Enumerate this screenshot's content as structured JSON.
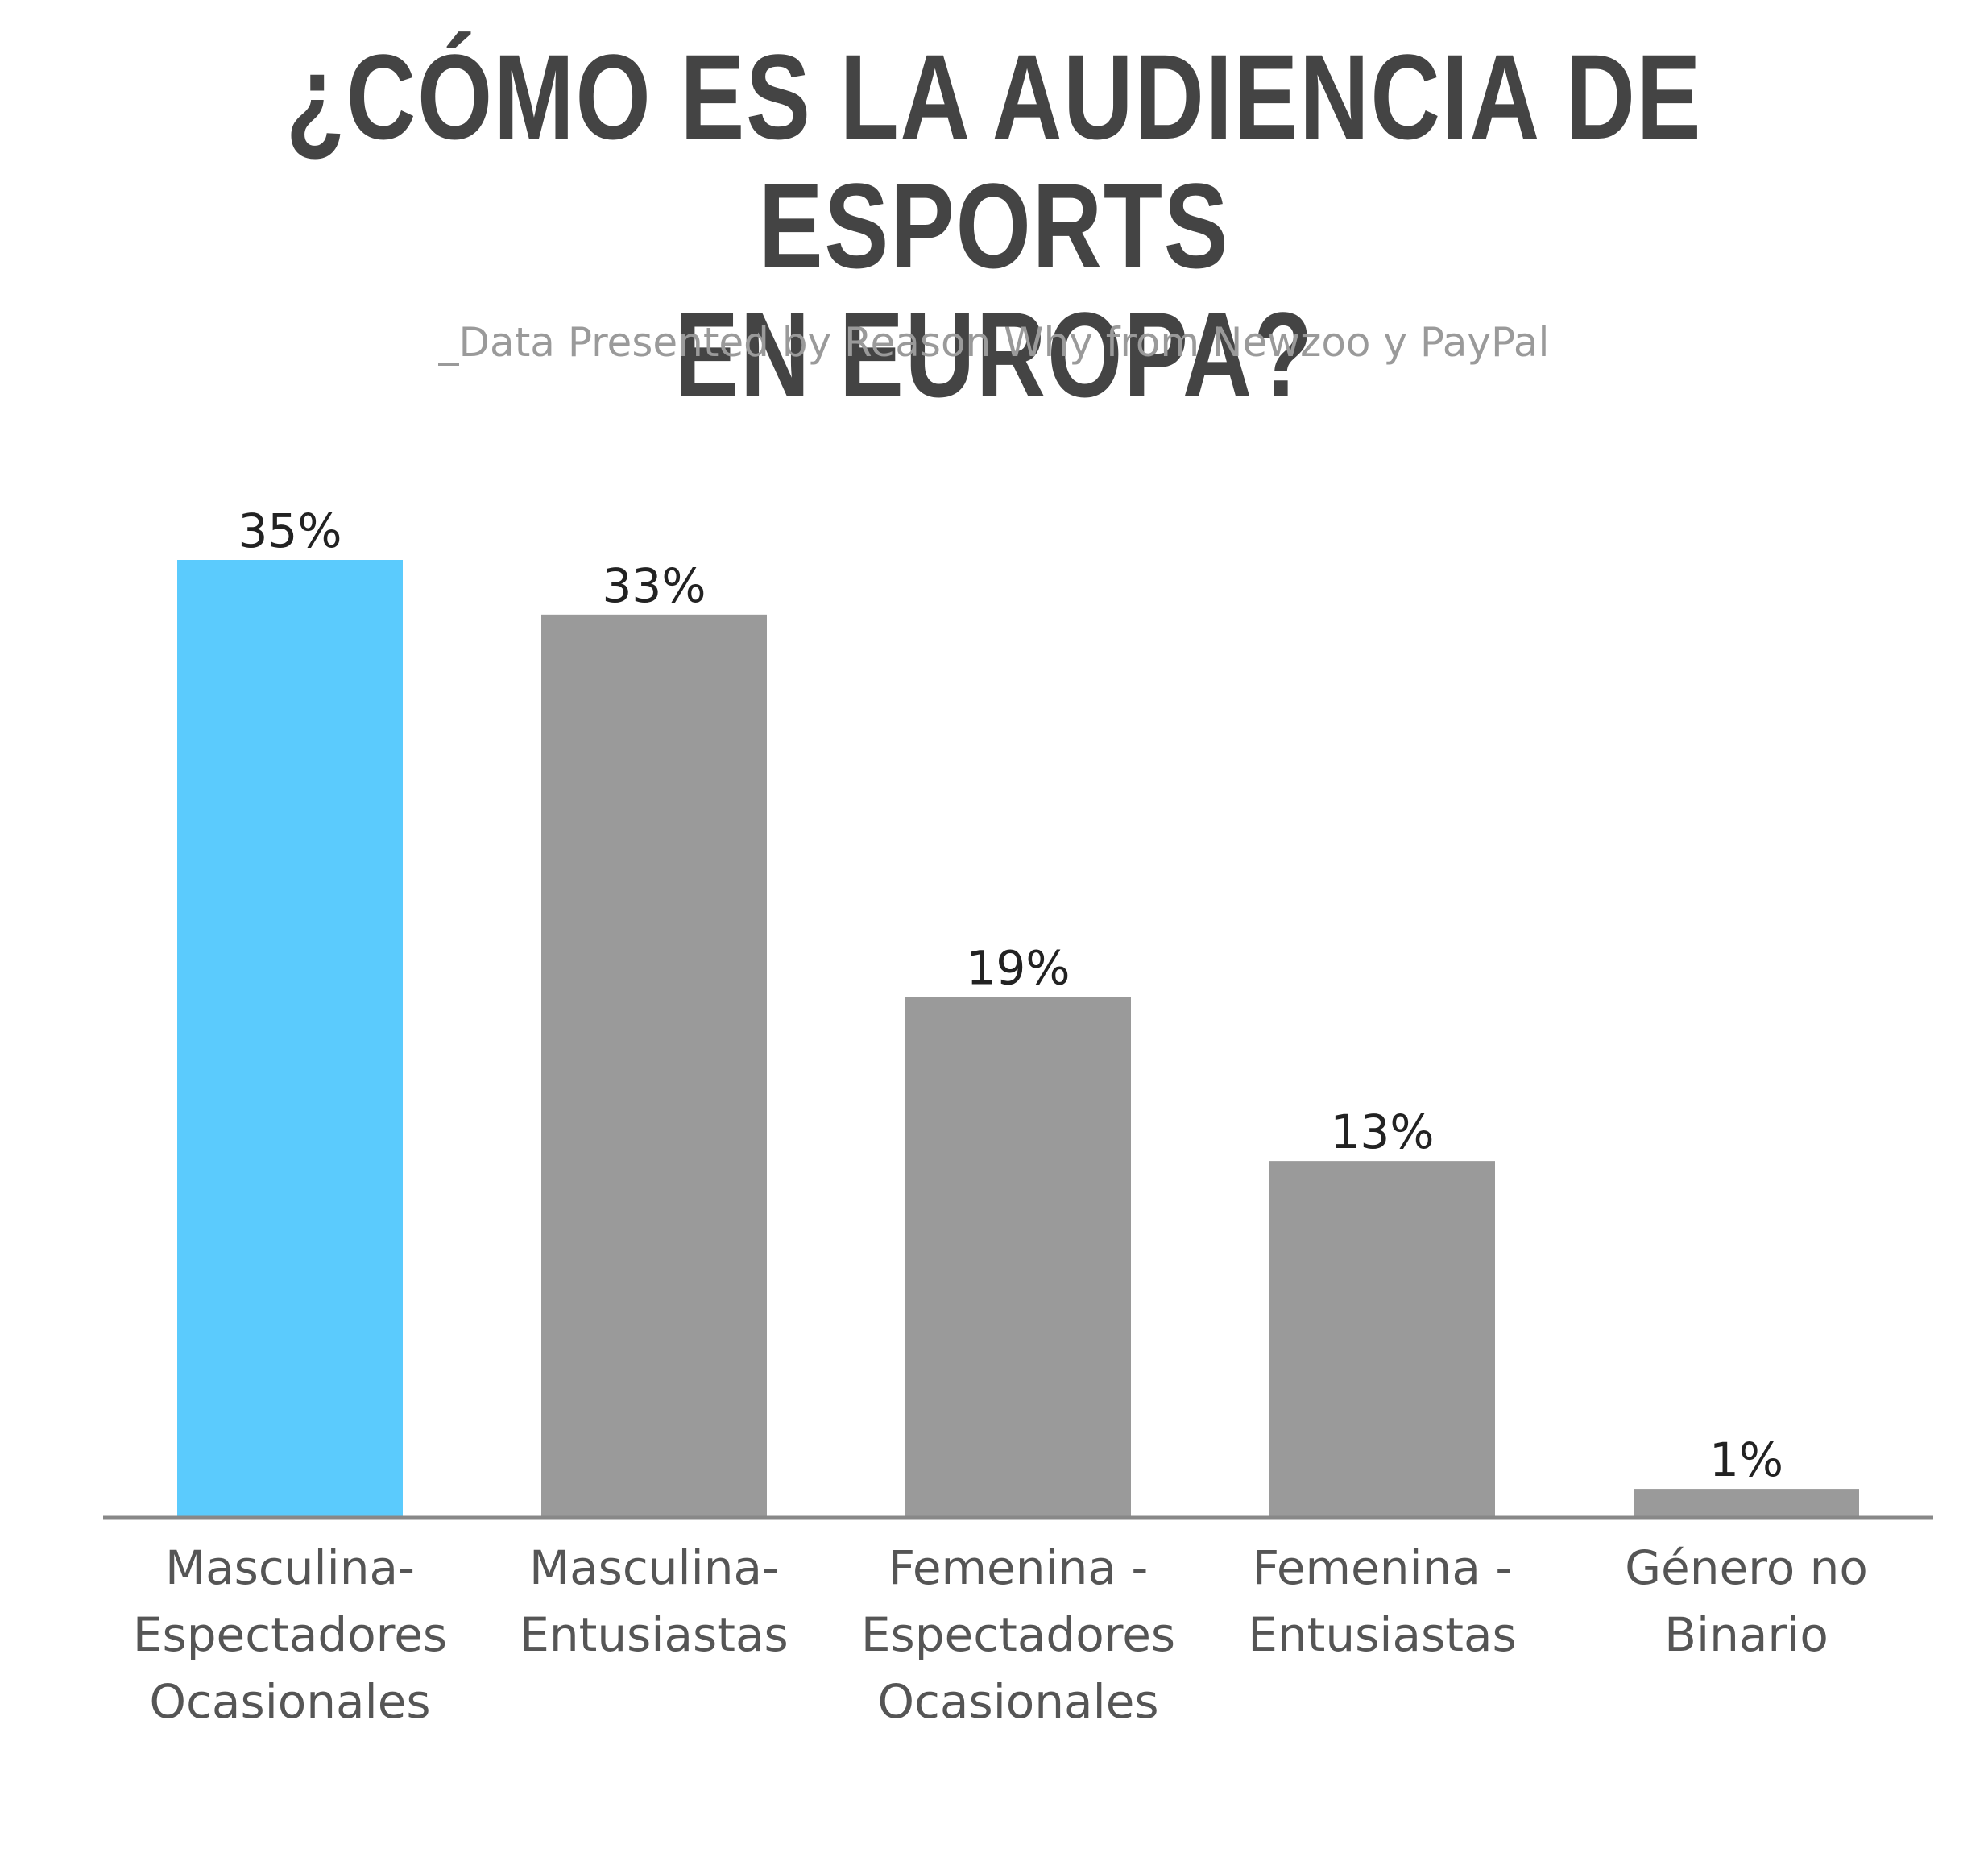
{
  "header": {
    "title_line1": "¿CÓMO ES LA AUDIENCIA DE ESPORTS",
    "title_line2": "EN EUROPA?",
    "subtitle": "_Data Presented by Reason Why from Newzoo y PayPal"
  },
  "colors": {
    "highlight": "#5bcbfd",
    "bar": "#9a9a9a",
    "axis": "#888888",
    "title": "#444444",
    "subtitle": "#9a9a9a"
  },
  "chart_data": {
    "type": "bar",
    "title": "¿CÓMO ES LA AUDIENCIA DE ESPORTS EN EUROPA?",
    "subtitle": "_Data Presented by Reason Why from Newzoo y PayPal",
    "categories": [
      [
        "Masculina-",
        "Espectadores",
        "Ocasionales"
      ],
      [
        "Masculina-",
        "Entusiastas"
      ],
      [
        "Femenina -",
        "Espectadores",
        "Ocasionales"
      ],
      [
        "Femenina -",
        "Entusiastas"
      ],
      [
        "Género no",
        "Binario"
      ]
    ],
    "values": [
      35,
      33,
      19,
      13,
      1
    ],
    "value_labels": [
      "35%",
      "33%",
      "19%",
      "13%",
      "1%"
    ],
    "highlight_index": 0,
    "xlabel": "",
    "ylabel": "",
    "ylim": [
      0,
      35
    ],
    "grid": false,
    "legend": "none"
  }
}
